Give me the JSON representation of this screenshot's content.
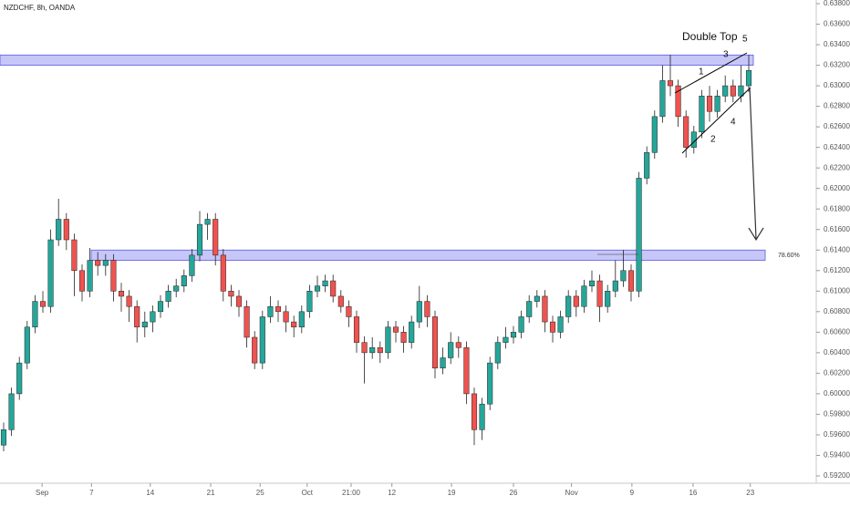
{
  "chart_data": {
    "type": "candlestick",
    "title": "NZDCHF, 8h, OANDA",
    "up_color": "#26a69a",
    "down_color": "#ef5350",
    "zone_color": "#b3b3f7",
    "zones": [
      [
        0.632,
        0.633
      ],
      [
        0.613,
        0.614
      ]
    ],
    "annotations": [
      "Double Top",
      "1",
      "2",
      "3",
      "4",
      "5",
      "78.60%"
    ],
    "ylim": [
      0.592,
      0.638
    ],
    "yticks": [
      {
        "value": 0.592,
        "label": "0.59200"
      },
      {
        "value": 0.594,
        "label": "0.59400"
      },
      {
        "value": 0.596,
        "label": "0.59600"
      },
      {
        "value": 0.598,
        "label": "0.59800"
      },
      {
        "value": 0.6,
        "label": "0.60000"
      },
      {
        "value": 0.602,
        "label": "0.60200"
      },
      {
        "value": 0.604,
        "label": "0.60400"
      },
      {
        "value": 0.606,
        "label": "0.60600"
      },
      {
        "value": 0.608,
        "label": "0.60800"
      },
      {
        "value": 0.61,
        "label": "0.61000"
      },
      {
        "value": 0.612,
        "label": "0.61200"
      },
      {
        "value": 0.614,
        "label": "0.61400"
      },
      {
        "value": 0.616,
        "label": "0.61600"
      },
      {
        "value": 0.618,
        "label": "0.61800"
      },
      {
        "value": 0.62,
        "label": "0.62000"
      },
      {
        "value": 0.622,
        "label": "0.62200"
      },
      {
        "value": 0.624,
        "label": "0.62400"
      },
      {
        "value": 0.626,
        "label": "0.62600"
      },
      {
        "value": 0.628,
        "label": "0.62800"
      },
      {
        "value": 0.63,
        "label": "0.63000"
      },
      {
        "value": 0.632,
        "label": "0.63200"
      },
      {
        "value": 0.634,
        "label": "0.63400"
      },
      {
        "value": 0.636,
        "label": "0.63600"
      },
      {
        "value": 0.638,
        "label": "0.63800"
      }
    ],
    "xticks": [
      {
        "value": 4.9,
        "label": "Sep"
      },
      {
        "value": 11.2,
        "label": "7"
      },
      {
        "value": 18.7,
        "label": "14"
      },
      {
        "value": 26.4,
        "label": "21"
      },
      {
        "value": 32.7,
        "label": "25"
      },
      {
        "value": 38.7,
        "label": "Oct"
      },
      {
        "value": 44.3,
        "label": "21:00"
      },
      {
        "value": 49.5,
        "label": "12"
      },
      {
        "value": 57.1,
        "label": "19"
      },
      {
        "value": 65,
        "label": "26"
      },
      {
        "value": 72.4,
        "label": "Nov"
      },
      {
        "value": 80.1,
        "label": "9"
      },
      {
        "value": 87.9,
        "label": "16"
      },
      {
        "value": 95.2,
        "label": "23"
      }
    ],
    "open": [
      0.595,
      0.5965,
      0.6,
      0.603,
      0.6065,
      0.609,
      0.6085,
      0.615,
      0.617,
      0.615,
      0.612,
      0.61,
      0.613,
      0.6125,
      0.613,
      0.61,
      0.6095,
      0.6085,
      0.6065,
      0.607,
      0.608,
      0.609,
      0.61,
      0.6105,
      0.6115,
      0.6135,
      0.6165,
      0.617,
      0.6135,
      0.61,
      0.6095,
      0.6085,
      0.6055,
      0.603,
      0.6075,
      0.6085,
      0.608,
      0.607,
      0.6065,
      0.608,
      0.61,
      0.6105,
      0.611,
      0.6095,
      0.6085,
      0.6075,
      0.605,
      0.604,
      0.6045,
      0.604,
      0.6065,
      0.606,
      0.605,
      0.607,
      0.609,
      0.6075,
      0.6025,
      0.6035,
      0.605,
      0.6045,
      0.6,
      0.5965,
      0.599,
      0.603,
      0.605,
      0.6055,
      0.606,
      0.6075,
      0.609,
      0.6095,
      0.607,
      0.606,
      0.6075,
      0.6095,
      0.6085,
      0.6105,
      0.611,
      0.6085,
      0.61,
      0.611,
      0.612,
      0.61,
      0.621,
      0.6235,
      0.627,
      0.6305,
      0.63,
      0.627,
      0.624,
      0.6255,
      0.629,
      0.6275,
      0.629,
      0.63,
      0.629,
      0.63
    ],
    "high": [
      0.5972,
      0.6006,
      0.6036,
      0.6071,
      0.6096,
      0.61,
      0.616,
      0.619,
      0.6176,
      0.6156,
      0.6126,
      0.6142,
      0.6138,
      0.6136,
      0.6136,
      0.6108,
      0.6101,
      0.6091,
      0.608,
      0.6086,
      0.6096,
      0.6106,
      0.6112,
      0.6121,
      0.6141,
      0.6178,
      0.6176,
      0.6176,
      0.6141,
      0.6106,
      0.6101,
      0.6091,
      0.6061,
      0.6081,
      0.6095,
      0.6091,
      0.6086,
      0.6076,
      0.6086,
      0.6106,
      0.6115,
      0.6116,
      0.6116,
      0.6101,
      0.6091,
      0.6081,
      0.6056,
      0.6055,
      0.6051,
      0.6071,
      0.6071,
      0.6066,
      0.6076,
      0.6105,
      0.6096,
      0.6081,
      0.6045,
      0.606,
      0.6056,
      0.6051,
      0.6006,
      0.5996,
      0.6036,
      0.6056,
      0.6065,
      0.6066,
      0.6081,
      0.6096,
      0.6101,
      0.6101,
      0.6076,
      0.6081,
      0.6101,
      0.6101,
      0.6111,
      0.612,
      0.6116,
      0.6106,
      0.613,
      0.614,
      0.6126,
      0.6216,
      0.6241,
      0.6276,
      0.632,
      0.633,
      0.6306,
      0.6276,
      0.6261,
      0.6296,
      0.63,
      0.6296,
      0.631,
      0.6306,
      0.632,
      0.633
    ],
    "low": [
      0.5944,
      0.5959,
      0.5994,
      0.6024,
      0.6059,
      0.6079,
      0.6079,
      0.6144,
      0.614,
      0.6095,
      0.609,
      0.6094,
      0.6115,
      0.6115,
      0.609,
      0.608,
      0.607,
      0.605,
      0.6055,
      0.606,
      0.6074,
      0.6084,
      0.6094,
      0.6099,
      0.6109,
      0.6129,
      0.615,
      0.6125,
      0.609,
      0.6085,
      0.6075,
      0.6045,
      0.6024,
      0.6024,
      0.6069,
      0.607,
      0.606,
      0.6055,
      0.6059,
      0.6074,
      0.6094,
      0.6099,
      0.6089,
      0.6079,
      0.6065,
      0.604,
      0.601,
      0.6034,
      0.603,
      0.6034,
      0.605,
      0.604,
      0.6044,
      0.6064,
      0.6065,
      0.6015,
      0.6019,
      0.6029,
      0.6035,
      0.599,
      0.595,
      0.5955,
      0.5984,
      0.6024,
      0.6044,
      0.6049,
      0.6054,
      0.6069,
      0.6084,
      0.606,
      0.605,
      0.6054,
      0.6069,
      0.6075,
      0.6079,
      0.6099,
      0.607,
      0.6079,
      0.6094,
      0.6104,
      0.609,
      0.6094,
      0.6204,
      0.6229,
      0.6264,
      0.629,
      0.626,
      0.623,
      0.6234,
      0.6249,
      0.6265,
      0.6269,
      0.6284,
      0.6284,
      0.6284,
      0.6294
    ],
    "close": [
      0.5965,
      0.6,
      0.603,
      0.6065,
      0.609,
      0.6085,
      0.615,
      0.617,
      0.615,
      0.612,
      0.61,
      0.613,
      0.6125,
      0.613,
      0.61,
      0.6095,
      0.6085,
      0.6065,
      0.607,
      0.608,
      0.609,
      0.61,
      0.6105,
      0.6115,
      0.6135,
      0.6165,
      0.617,
      0.6135,
      0.61,
      0.6095,
      0.6085,
      0.6055,
      0.603,
      0.6075,
      0.6085,
      0.608,
      0.607,
      0.6065,
      0.608,
      0.61,
      0.6105,
      0.611,
      0.6095,
      0.6085,
      0.6075,
      0.605,
      0.604,
      0.6045,
      0.604,
      0.6065,
      0.606,
      0.605,
      0.607,
      0.609,
      0.6075,
      0.6025,
      0.6035,
      0.605,
      0.6045,
      0.6,
      0.5965,
      0.599,
      0.603,
      0.605,
      0.6055,
      0.606,
      0.6075,
      0.609,
      0.6095,
      0.607,
      0.606,
      0.6075,
      0.6095,
      0.6085,
      0.6105,
      0.611,
      0.6085,
      0.61,
      0.611,
      0.612,
      0.61,
      0.621,
      0.6235,
      0.627,
      0.6305,
      0.63,
      0.627,
      0.624,
      0.6255,
      0.629,
      0.6275,
      0.629,
      0.63,
      0.629,
      0.63,
      0.6315
    ]
  }
}
